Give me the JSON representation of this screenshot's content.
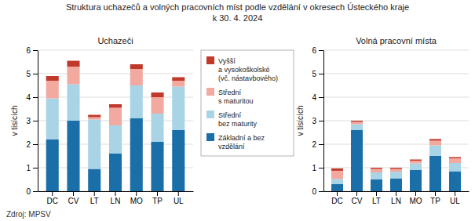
{
  "title": "Struktura uchazečů a volných pracovních míst podle vzdělání v okresech Ústeckého kraje\nk 30. 4. 2024",
  "annotations": [
    "Zdroj: MPSV"
  ],
  "chart_data": [
    {
      "type": "bar",
      "stacked": true,
      "grid": true,
      "title": "Uchazeči",
      "ylabel": "v tisících",
      "categories": [
        "DC",
        "CV",
        "LT",
        "LN",
        "MO",
        "TP",
        "UL"
      ],
      "series": [
        {
          "name": "Základní a bez\nvzdělání",
          "color": "#1a6fa8",
          "values": [
            2.2,
            3.0,
            0.95,
            1.6,
            3.1,
            2.1,
            2.6
          ]
        },
        {
          "name": "Střední\nbez maturity",
          "color": "#a8d4e6",
          "values": [
            1.75,
            1.55,
            2.1,
            1.2,
            1.4,
            1.2,
            1.85
          ]
        },
        {
          "name": "Střední\ns maturitou",
          "color": "#f1a9a0",
          "values": [
            0.75,
            0.75,
            0.1,
            0.75,
            0.7,
            0.7,
            0.25
          ]
        },
        {
          "name": "Vyšší\na vysokoškolské\n(vč. nástavbového)",
          "color": "#c0392b",
          "values": [
            0.2,
            0.25,
            0.1,
            0.15,
            0.2,
            0.2,
            0.15
          ]
        }
      ],
      "ylim": [
        0,
        6
      ],
      "yticks": [
        0,
        1,
        2,
        3,
        4,
        5,
        6
      ]
    },
    {
      "type": "bar",
      "stacked": true,
      "grid": true,
      "title": "Volná pracovní místa",
      "ylabel": "v tisících",
      "categories": [
        "DC",
        "CV",
        "LT",
        "LN",
        "MO",
        "TP",
        "UL"
      ],
      "series": [
        {
          "color": "#1a6fa8",
          "values": [
            0.3,
            2.6,
            0.5,
            0.55,
            0.9,
            1.5,
            0.85
          ]
        },
        {
          "color": "#a8d4e6",
          "values": [
            0.22,
            0.25,
            0.3,
            0.28,
            0.28,
            0.45,
            0.35
          ]
        },
        {
          "color": "#f1a9a0",
          "values": [
            0.35,
            0.1,
            0.15,
            0.12,
            0.12,
            0.2,
            0.2
          ]
        },
        {
          "color": "#c0392b",
          "values": [
            0.1,
            0.05,
            0.05,
            0.05,
            0.05,
            0.07,
            0.05
          ]
        }
      ],
      "ylim": [
        0,
        6
      ],
      "yticks": [
        0,
        1,
        2,
        3,
        4,
        5,
        6
      ]
    }
  ]
}
